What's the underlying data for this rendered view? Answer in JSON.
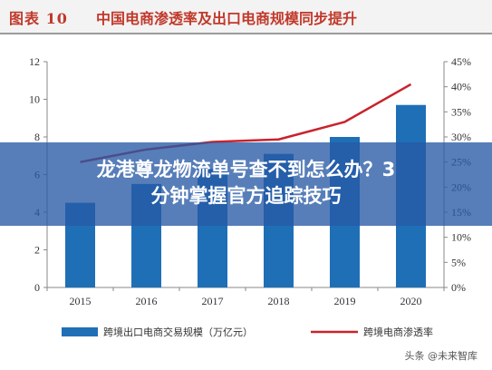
{
  "header": {
    "figure_label": "图表 10",
    "title": "中国电商渗透率及出口电商规模同步提升"
  },
  "banner": {
    "line1": "龙港尊龙物流单号查不到怎么办？3",
    "line2": "分钟掌握官方追踪技巧"
  },
  "watermark": "头条 @未来智库",
  "colors": {
    "bar": "#1f6fb7",
    "line": "#c8232c",
    "title": "#c0392b",
    "banner": "#285aa5"
  },
  "chart_data": {
    "type": "bar",
    "categories": [
      "2015",
      "2016",
      "2017",
      "2018",
      "2019",
      "2020"
    ],
    "series": [
      {
        "name": "跨境出口电商交易规模（万亿元）",
        "type": "bar",
        "axis": "left",
        "values": [
          4.5,
          5.5,
          6.3,
          7.1,
          8.0,
          9.7
        ]
      },
      {
        "name": "跨境电商渗透率",
        "type": "line",
        "axis": "right",
        "values": [
          25.0,
          27.5,
          29.0,
          29.5,
          33.0,
          40.5
        ]
      }
    ],
    "y_left": {
      "ylim": [
        0,
        12
      ],
      "ticks": [
        "0",
        "2",
        "4",
        "6",
        "8",
        "10",
        "12"
      ]
    },
    "y_right": {
      "ylim": [
        0,
        45
      ],
      "ticks": [
        "0%",
        "5%",
        "10%",
        "15%",
        "20%",
        "25%",
        "30%",
        "35%",
        "40%",
        "45%"
      ]
    },
    "legend_position": "bottom",
    "grid": false
  }
}
